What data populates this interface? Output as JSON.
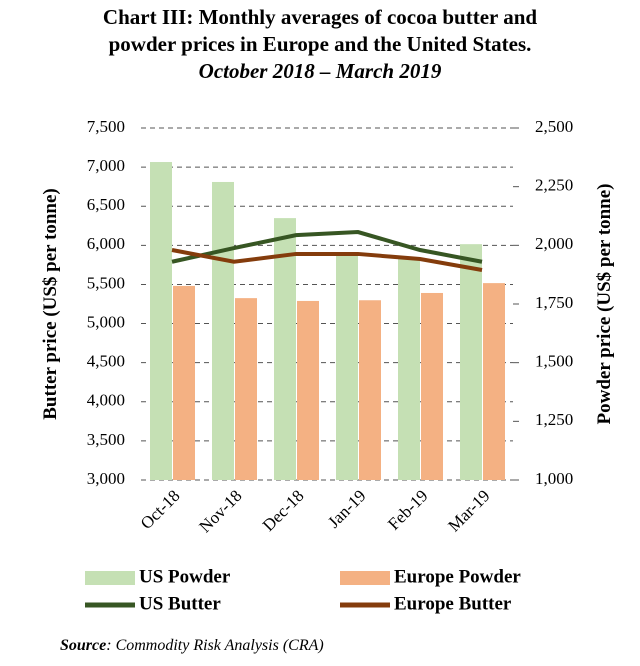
{
  "chart_data": {
    "type": "bar_line",
    "title": [
      "Chart III: Monthly averages of cocoa butter and",
      "powder prices in Europe and the United States."
    ],
    "subtitle": "October 2018 – March 2019",
    "y_label": "Butter price (US$ per tonne)",
    "y2_label": "Powder price (US$ per tonne)",
    "categories": [
      "Oct-18",
      "Nov-18",
      "Dec-18",
      "Jan-19",
      "Feb-19",
      "Mar-19"
    ],
    "series": [
      {
        "name": "US Powder",
        "kind": "bar",
        "axis": "y2",
        "color": "#c5e0b4",
        "values": [
          2355,
          2270,
          2116,
          1955,
          1950,
          2005
        ]
      },
      {
        "name": "Europe Powder",
        "kind": "bar",
        "axis": "y2",
        "color": "#f4b183",
        "values": [
          1827,
          1775,
          1763,
          1766,
          1797,
          1839
        ]
      },
      {
        "name": "US Butter",
        "kind": "line",
        "color": "#375623",
        "values": [
          5790,
          5965,
          6130,
          6170,
          5940,
          5790
        ]
      },
      {
        "name": "Europe Butter",
        "kind": "line",
        "color": "#843c0c",
        "values": [
          5940,
          5790,
          5890,
          5890,
          5825,
          5685
        ]
      }
    ],
    "ylim": [
      3000,
      7500
    ],
    "yticks": [
      {
        "value": 3000,
        "label": "3,000"
      },
      {
        "value": 3500,
        "label": "3,500"
      },
      {
        "value": 4000,
        "label": "4,000"
      },
      {
        "value": 4500,
        "label": "4,500"
      },
      {
        "value": 5000,
        "label": "5,000"
      },
      {
        "value": 5500,
        "label": "5,500"
      },
      {
        "value": 6000,
        "label": "6,000"
      },
      {
        "value": 6500,
        "label": "6,500"
      },
      {
        "value": 7000,
        "label": "7,000"
      },
      {
        "value": 7500,
        "label": "7,500"
      }
    ],
    "y2lim": [
      1000,
      2500
    ],
    "y2ticks": [
      {
        "value": 1000,
        "label": "1,000"
      },
      {
        "value": 1250,
        "label": "1,250"
      },
      {
        "value": 1500,
        "label": "1,500"
      },
      {
        "value": 1750,
        "label": "1,750"
      },
      {
        "value": 2000,
        "label": "2,000"
      },
      {
        "value": 2250,
        "label": "2,250"
      },
      {
        "value": 2500,
        "label": "2,500"
      }
    ],
    "grid": true,
    "source_label": "Source",
    "source_text": ": Commodity Risk Analysis (CRA)"
  }
}
